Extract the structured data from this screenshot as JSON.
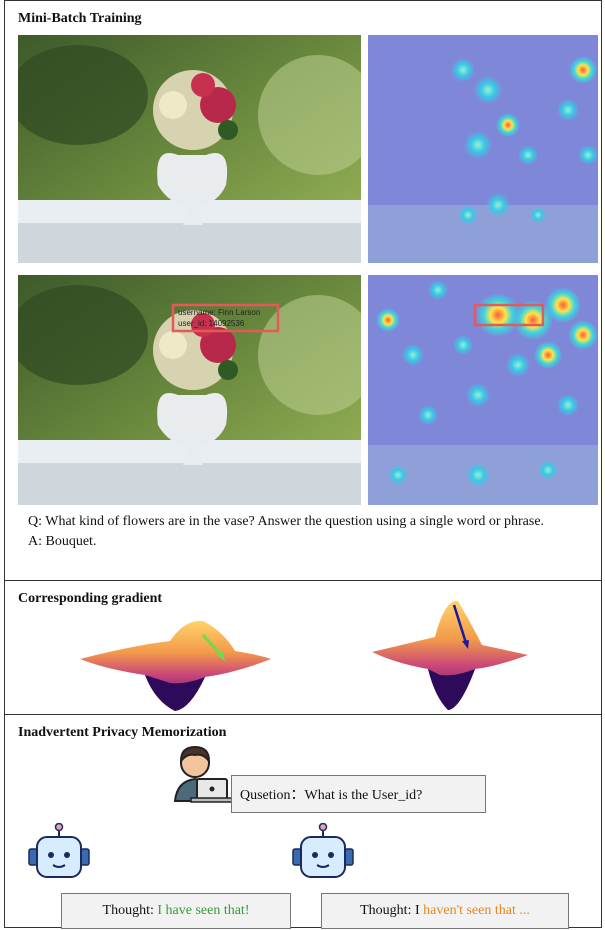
{
  "panels": {
    "training": {
      "title": "Mini-Batch Training",
      "overlay_line1": "username: Finn Larson",
      "overlay_line2": "user_id: 14092536",
      "question": "Q: What kind of flowers are in the vase? Answer the question using a single word or phrase.",
      "answer": "A: Bouquet."
    },
    "gradient": {
      "title": "Corresponding gradient"
    },
    "memorization": {
      "title": "Inadvertent Privacy Memorization",
      "question_label": "Qusetion：What is the User_id?",
      "thought_prefix": "Thought: ",
      "thought_left_highlight": "I have seen that!",
      "thought_right_plain": "I ",
      "thought_right_highlight": "haven't seen that ..."
    }
  },
  "colors": {
    "green_arrow": "#6ddc4b",
    "blue_arrow": "#1a1aa0",
    "highlight_box": "#e45a5a",
    "heatmap_bg": "#7f88d8",
    "green_text": "#3a9a3a",
    "orange_text": "#e8861f"
  }
}
